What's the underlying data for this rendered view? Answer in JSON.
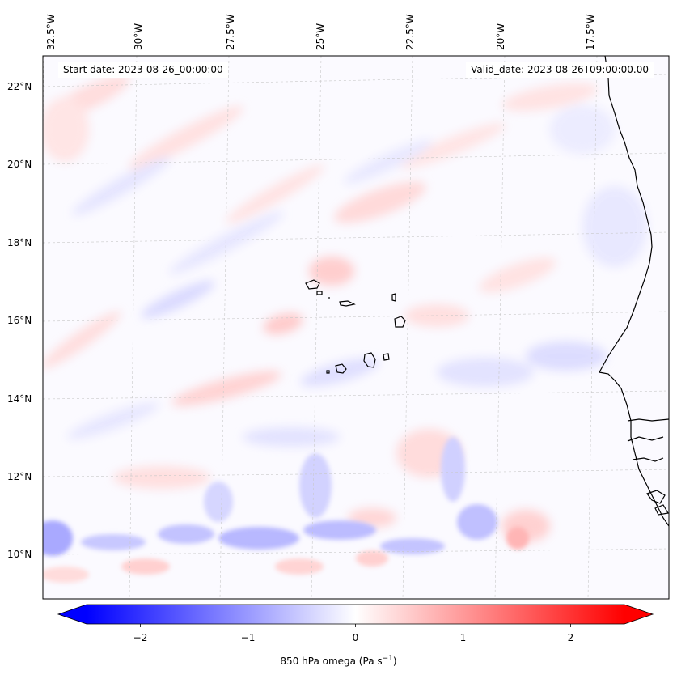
{
  "map": {
    "start_date": "Start date: 2023-08-26_00:00:00",
    "valid_date": "Valid_date: 2023-08-26T09:00:00.00",
    "field_label": "850 hPa omega (Pa s",
    "field_unit_exp": "−1",
    "field_label_end": ")",
    "lon_labels": [
      "32.5°W",
      "30°W",
      "27.5°W",
      "25°W",
      "22.5°W",
      "20°W",
      "17.5°W"
    ],
    "lat_labels": [
      "22°N",
      "20°N",
      "18°N",
      "16°N",
      "14°N",
      "12°N",
      "10°N"
    ],
    "extent": {
      "lon_min": -33.0,
      "lon_max": -15.5,
      "lat_min": 9.0,
      "lat_max": 22.8
    },
    "colormap": "bwr",
    "grid": true
  },
  "colorbar": {
    "min": -2.5,
    "max": 2.5,
    "ticks": [
      "−2",
      "−1",
      "0",
      "1",
      "2"
    ],
    "tick_values": [
      -2,
      -1,
      0,
      1,
      2
    ],
    "extend": "both",
    "low_color": "#0000ff",
    "high_color": "#ff0000",
    "mid_color": "#ffffff"
  }
}
